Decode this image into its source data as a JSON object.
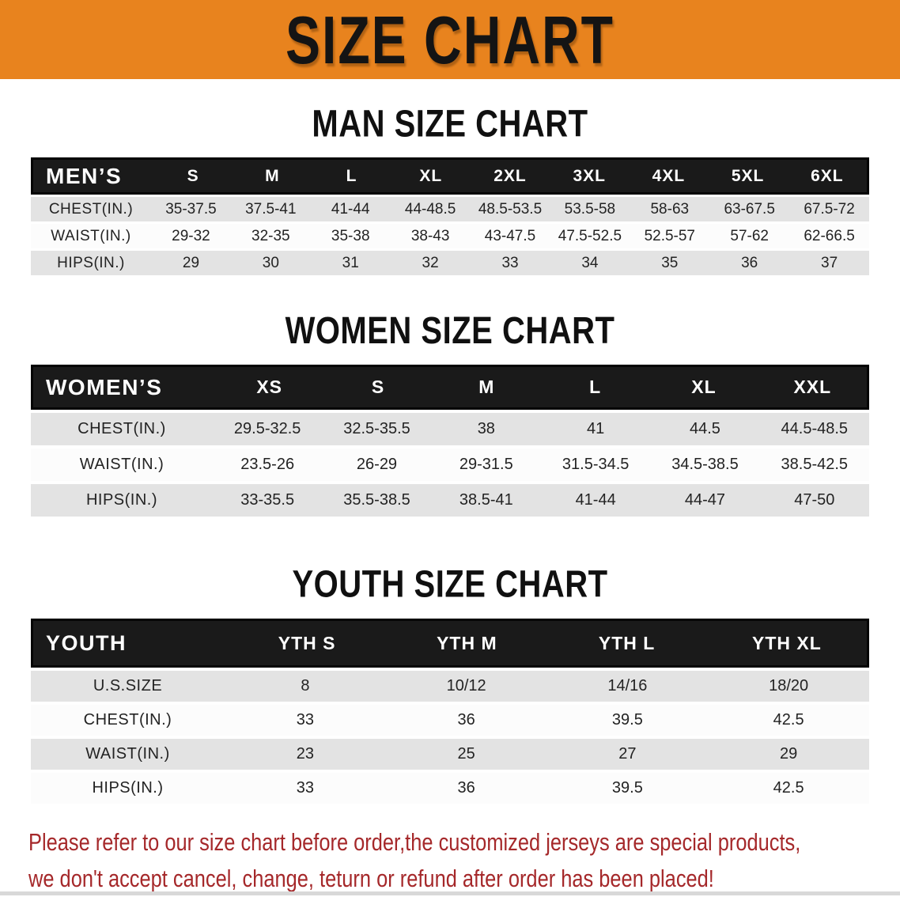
{
  "banner": {
    "title": "SIZE CHART"
  },
  "sections": [
    {
      "id": "men",
      "title": "MAN SIZE CHART",
      "table": {
        "header_label": "MEN’S",
        "columns": [
          "S",
          "M",
          "L",
          "XL",
          "2XL",
          "3XL",
          "4XL",
          "5XL",
          "6XL"
        ],
        "rows": [
          {
            "label": "CHEST(IN.)",
            "values": [
              "35-37.5",
              "37.5-41",
              "41-44",
              "44-48.5",
              "48.5-53.5",
              "53.5-58",
              "58-63",
              "63-67.5",
              "67.5-72"
            ]
          },
          {
            "label": "WAIST(IN.)",
            "values": [
              "29-32",
              "32-35",
              "35-38",
              "38-43",
              "43-47.5",
              "47.5-52.5",
              "52.5-57",
              "57-62",
              "62-66.5"
            ]
          },
          {
            "label": "HIPS(IN.)",
            "values": [
              "29",
              "30",
              "31",
              "32",
              "33",
              "34",
              "35",
              "36",
              "37"
            ]
          }
        ]
      }
    },
    {
      "id": "women",
      "title": "WOMEN SIZE CHART",
      "table": {
        "header_label": "WOMEN’S",
        "columns": [
          "XS",
          "S",
          "M",
          "L",
          "XL",
          "XXL"
        ],
        "rows": [
          {
            "label": "CHEST(IN.)",
            "values": [
              "29.5-32.5",
              "32.5-35.5",
              "38",
              "41",
              "44.5",
              "44.5-48.5"
            ]
          },
          {
            "label": "WAIST(IN.)",
            "values": [
              "23.5-26",
              "26-29",
              "29-31.5",
              "31.5-34.5",
              "34.5-38.5",
              "38.5-42.5"
            ]
          },
          {
            "label": "HIPS(IN.)",
            "values": [
              "33-35.5",
              "35.5-38.5",
              "38.5-41",
              "41-44",
              "44-47",
              "47-50"
            ]
          }
        ]
      }
    },
    {
      "id": "youth",
      "title": "YOUTH SIZE CHART",
      "table": {
        "header_label": "YOUTH",
        "columns": [
          "YTH S",
          "YTH M",
          "YTH L",
          "YTH XL"
        ],
        "rows": [
          {
            "label": "U.S.SIZE",
            "values": [
              "8",
              "10/12",
              "14/16",
              "18/20"
            ]
          },
          {
            "label": "CHEST(IN.)",
            "values": [
              "33",
              "36",
              "39.5",
              "42.5"
            ]
          },
          {
            "label": "WAIST(IN.)",
            "values": [
              "23",
              "25",
              "27",
              "29"
            ]
          },
          {
            "label": "HIPS(IN.)",
            "values": [
              "33",
              "36",
              "39.5",
              "42.5"
            ]
          }
        ]
      }
    }
  ],
  "disclaimer": {
    "line1": "Please refer to our size chart before order,the customized jerseys are special products,",
    "line2": "we don't accept cancel, change, teturn or refund after order has been placed!"
  },
  "colors": {
    "banner_orange": "#E8831E",
    "table_header_black": "#1A1A1A",
    "row_gray": "#E3E3E3",
    "row_white": "#FCFCFC",
    "disclaimer_red": "#A5282A"
  }
}
